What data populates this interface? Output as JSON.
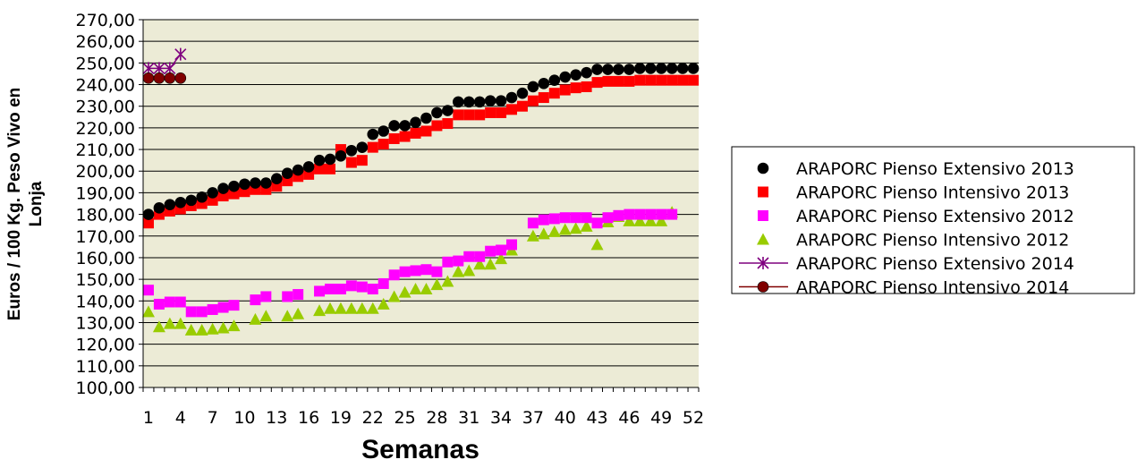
{
  "chart_data": {
    "type": "scatter",
    "title": "",
    "xlabel": "Semanas",
    "ylabel_line1": "Euros / 100 Kg. Peso Vivo en",
    "ylabel_line2": "Lonja",
    "xlim": [
      1,
      52
    ],
    "ylim": [
      100,
      270
    ],
    "x_ticks": [
      "1",
      "4",
      "7",
      "10",
      "13",
      "16",
      "19",
      "22",
      "25",
      "28",
      "31",
      "34",
      "37",
      "40",
      "43",
      "46",
      "49",
      "52"
    ],
    "y_ticks": [
      "100,00",
      "110,00",
      "120,00",
      "130,00",
      "140,00",
      "150,00",
      "160,00",
      "170,00",
      "180,00",
      "190,00",
      "200,00",
      "210,00",
      "220,00",
      "230,00",
      "240,00",
      "250,00",
      "260,00",
      "270,00"
    ],
    "plot_background": "#ecebd6",
    "grid": true,
    "legend_position": "right",
    "series": [
      {
        "name": "ARAPORC Pienso Extensivo 2013",
        "marker": "circle",
        "color": "#000000",
        "line": false,
        "x": [
          1,
          2,
          3,
          4,
          5,
          6,
          7,
          8,
          9,
          10,
          11,
          12,
          13,
          14,
          15,
          16,
          17,
          18,
          19,
          20,
          21,
          22,
          23,
          24,
          25,
          26,
          27,
          28,
          29,
          30,
          31,
          32,
          33,
          34,
          35,
          36,
          37,
          38,
          39,
          40,
          41,
          42,
          43,
          44,
          45,
          46,
          47,
          48,
          49,
          50,
          51,
          52
        ],
        "values": [
          180,
          183,
          184.5,
          185.5,
          186.5,
          188,
          190,
          192,
          193,
          194,
          194.5,
          194.5,
          196.5,
          199,
          200.5,
          202,
          205,
          205.5,
          207,
          209.5,
          211,
          217,
          218.5,
          221,
          221,
          222.5,
          224.5,
          227,
          228,
          232,
          232,
          232,
          232.5,
          232.5,
          234,
          236,
          239,
          240.5,
          242,
          243.5,
          244.5,
          245.5,
          247,
          247,
          247,
          247,
          247.5,
          247.5,
          247.5,
          247.5,
          247.5,
          247.5
        ]
      },
      {
        "name": "ARAPORC Pienso Intensivo 2013",
        "marker": "square",
        "color": "#ff0000",
        "line": false,
        "x": [
          1,
          2,
          3,
          4,
          5,
          6,
          7,
          8,
          9,
          10,
          11,
          12,
          13,
          14,
          15,
          16,
          17,
          18,
          19,
          20,
          21,
          22,
          23,
          24,
          25,
          26,
          27,
          28,
          29,
          30,
          31,
          32,
          33,
          34,
          35,
          36,
          37,
          38,
          39,
          40,
          41,
          42,
          43,
          44,
          45,
          46,
          47,
          48,
          49,
          50,
          51,
          52
        ],
        "values": [
          176,
          180,
          181.5,
          182.5,
          184,
          185,
          186.5,
          188.5,
          189.5,
          190.5,
          191.5,
          191.5,
          193,
          195.5,
          197.5,
          198.5,
          201,
          201,
          210,
          204,
          205,
          211,
          212.5,
          215,
          216,
          217.5,
          218.5,
          221,
          222,
          226,
          226,
          226,
          227,
          227,
          228.5,
          230,
          232.5,
          234,
          236,
          237.5,
          238.5,
          239,
          241,
          241.5,
          241.5,
          241.5,
          242,
          242,
          242,
          242,
          242,
          242
        ]
      },
      {
        "name": "ARAPORC Pienso Extensivo 2012",
        "marker": "square",
        "color": "#ff00ff",
        "line": false,
        "x": [
          1,
          2,
          3,
          4,
          5,
          6,
          7,
          8,
          9,
          11,
          12,
          14,
          15,
          17,
          18,
          19,
          20,
          21,
          22,
          23,
          24,
          25,
          26,
          27,
          28,
          29,
          30,
          31,
          32,
          33,
          34,
          35,
          37,
          38,
          39,
          40,
          41,
          42,
          43,
          44,
          45,
          46,
          47,
          48,
          49,
          50
        ],
        "values": [
          145,
          138.5,
          139.5,
          139.5,
          135,
          135,
          136,
          137,
          138,
          140.5,
          142,
          142,
          143,
          144.5,
          145.5,
          145.5,
          147,
          146.5,
          145.5,
          148,
          152,
          153.5,
          154,
          154.5,
          153.5,
          158,
          158.5,
          160.5,
          160.5,
          163,
          163.5,
          166,
          176,
          177.5,
          178,
          178.5,
          178.5,
          178.5,
          176,
          178.5,
          179.5,
          180,
          180,
          180,
          180,
          180
        ]
      },
      {
        "name": "ARAPORC Pienso Intensivo 2012",
        "marker": "triangle",
        "color": "#99cc00",
        "line": false,
        "x": [
          1,
          2,
          3,
          4,
          5,
          6,
          7,
          8,
          9,
          11,
          12,
          14,
          15,
          17,
          18,
          19,
          20,
          21,
          22,
          23,
          24,
          25,
          26,
          27,
          28,
          29,
          30,
          31,
          32,
          33,
          34,
          35,
          37,
          38,
          39,
          40,
          41,
          42,
          43,
          44,
          45,
          46,
          47,
          48,
          49,
          50
        ],
        "values": [
          135,
          128,
          129.5,
          129.5,
          126.5,
          126.5,
          127,
          127.5,
          128.5,
          131.5,
          133,
          133,
          134,
          135.5,
          136.5,
          136.5,
          136.5,
          136.5,
          136.5,
          138.5,
          142,
          144,
          145.5,
          145.5,
          147.5,
          149,
          153.5,
          154,
          157,
          157,
          159.5,
          163.5,
          170,
          171,
          172,
          173,
          173.5,
          174.5,
          166,
          176.5,
          179,
          177,
          177,
          177,
          177,
          181
        ]
      },
      {
        "name": "ARAPORC Pienso Extensivo 2014",
        "marker": "star",
        "color": "#7f007f",
        "line": true,
        "x": [
          1,
          2,
          3,
          4
        ],
        "values": [
          247.5,
          247.5,
          247.5,
          254
        ]
      },
      {
        "name": "ARAPORC Pienso Intensivo 2014",
        "marker": "circle",
        "color": "#800000",
        "line": true,
        "x": [
          1,
          2,
          3,
          4
        ],
        "values": [
          243,
          243,
          243,
          243
        ]
      }
    ]
  }
}
